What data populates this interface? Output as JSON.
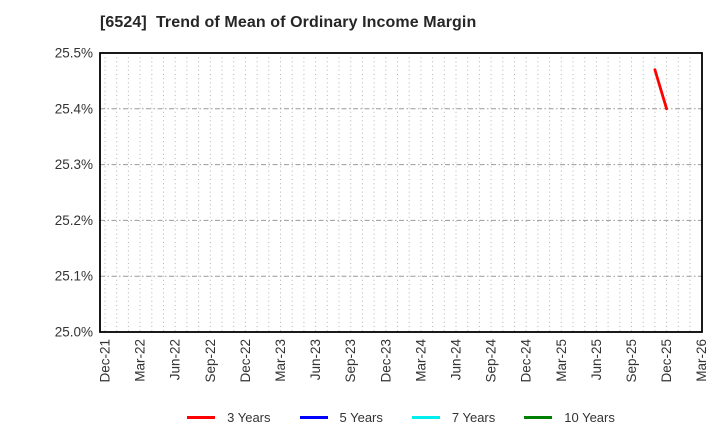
{
  "chart": {
    "title": "[6524]  Trend of Mean of Ordinary Income Margin"
  },
  "chart_data": {
    "type": "line",
    "title": "[6524]  Trend of Mean of Ordinary Income Margin",
    "xlabel": "",
    "ylabel": "",
    "ylim": [
      25.0,
      25.5
    ],
    "y_ticks": [
      25.0,
      25.1,
      25.2,
      25.3,
      25.4,
      25.5
    ],
    "y_tick_labels": [
      "25.0%",
      "25.1%",
      "25.2%",
      "25.3%",
      "25.4%",
      "25.5%"
    ],
    "x_tick_labels": [
      "Dec-21",
      "Mar-22",
      "Jun-22",
      "Sep-22",
      "Dec-22",
      "Mar-23",
      "Jun-23",
      "Sep-23",
      "Dec-23",
      "Mar-24",
      "Jun-24",
      "Sep-24",
      "Dec-24",
      "Mar-25",
      "Jun-25",
      "Sep-25",
      "Dec-25",
      "Mar-26"
    ],
    "x_start_month": "Dec-21",
    "x_total_months": 51,
    "months_per_x_tick": 3,
    "grid": {
      "shown": true,
      "vertical": "monthly dotted",
      "horizontal": "dash-dot at each 0.1%"
    },
    "legend_position": "bottom-center",
    "axis_border_color": "#000000",
    "gridline_color_vertical": "#b3b3b3",
    "gridline_color_horizontal": "#999999",
    "tick_label_color": "#333333",
    "series": [
      {
        "name": "3 Years",
        "color": "#ff0000",
        "points": [
          {
            "x": "Nov-25",
            "month_index": 47,
            "value": 25.47
          },
          {
            "x": "Dec-25",
            "month_index": 48,
            "value": 25.4
          }
        ]
      },
      {
        "name": "5 Years",
        "color": "#0000ff",
        "points": []
      },
      {
        "name": "7 Years",
        "color": "#00eeee",
        "points": []
      },
      {
        "name": "10 Years",
        "color": "#008000",
        "points": []
      }
    ]
  }
}
